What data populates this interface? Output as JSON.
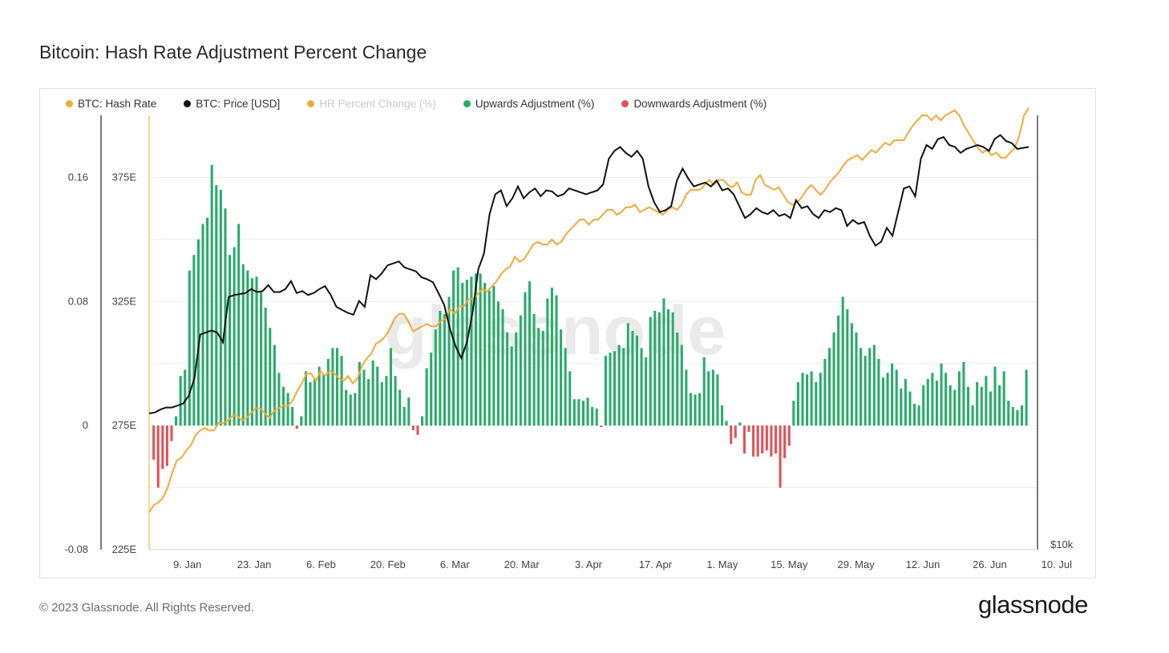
{
  "page": {
    "footer": "© 2023 Glassnode. All Rights Reserved.",
    "brand": "glassnode",
    "watermark": "glassnode"
  },
  "colors": {
    "hash_rate": "#f2a93b",
    "price": "#111111",
    "hr_pct": "#f2a93b",
    "up": "#2aab6b",
    "down": "#e0525a",
    "grid": "#ebebeb"
  },
  "chart_data": {
    "type": "bar",
    "title": "Bitcoin: Hash Rate Adjustment Percent Change",
    "legend": [
      {
        "name": "BTC: Hash Rate",
        "color": "#f2a93b",
        "faded": false
      },
      {
        "name": "BTC: Price [USD]",
        "color": "#111111",
        "faded": false
      },
      {
        "name": "HR Percent Change (%)",
        "color": "#f2a93b",
        "faded": true
      },
      {
        "name": "Upwards Adjustment (%)",
        "color": "#2aab6b",
        "faded": false
      },
      {
        "name": "Downwards Adjustment (%)",
        "color": "#e0525a",
        "faded": false
      }
    ],
    "x_labels": [
      "9. Jan",
      "23. Jan",
      "6. Feb",
      "20. Feb",
      "6. Mar",
      "20. Mar",
      "3. Apr",
      "17. Apr",
      "1. May",
      "15. May",
      "29. May",
      "12. Jun",
      "26. Jun",
      "10. Jul"
    ],
    "x_range": [
      0,
      186
    ],
    "x_label_days": [
      8,
      22,
      36,
      50,
      64,
      78,
      92,
      106,
      120,
      134,
      148,
      162,
      176,
      190
    ],
    "y_left": {
      "ticks": [
        "0.16",
        "0.08",
        "0",
        "-0.08"
      ],
      "tick_values": [
        0.16,
        0.08,
        0,
        -0.08
      ],
      "range": [
        -0.08,
        0.2
      ]
    },
    "y_mid": {
      "ticks": [
        "375E",
        "325E",
        "275E",
        "225E"
      ],
      "tick_values": [
        375,
        325,
        275,
        225
      ],
      "range": [
        225,
        400
      ]
    },
    "y_right": {
      "ticks": [
        "$10k"
      ]
    },
    "adjustment_pct": [
      -0.022,
      -0.04,
      -0.028,
      -0.026,
      -0.01,
      0.006,
      0.032,
      0.036,
      0.1,
      0.11,
      0.12,
      0.13,
      0.134,
      0.168,
      0.155,
      0.152,
      0.14,
      0.11,
      0.115,
      0.13,
      0.104,
      0.1,
      0.095,
      0.096,
      0.086,
      0.076,
      0.063,
      0.052,
      0.034,
      0.025,
      0.021,
      0.012,
      -0.002,
      0.006,
      0.035,
      0.028,
      0.03,
      0.038,
      0.033,
      0.043,
      0.05,
      0.05,
      0.045,
      0.023,
      0.02,
      0.021,
      0.041,
      0.036,
      0.03,
      0.042,
      0.038,
      0.028,
      0.032,
      0.05,
      0.032,
      0.023,
      0.012,
      0.018,
      -0.003,
      -0.006,
      0.006,
      0.037,
      0.047,
      0.062,
      0.074,
      0.072,
      0.083,
      0.1,
      0.102,
      0.092,
      0.094,
      0.096,
      0.098,
      0.098,
      0.092,
      0.087,
      0.09,
      0.08,
      0.075,
      0.06,
      0.051,
      0.06,
      0.071,
      0.086,
      0.093,
      0.072,
      0.063,
      0.061,
      0.082,
      0.089,
      0.084,
      0.062,
      0.05,
      0.035,
      0.017,
      0.017,
      0.016,
      0.018,
      0.012,
      0.011,
      -0.001,
      0.045,
      0.047,
      0.048,
      0.052,
      0.05,
      0.066,
      0.061,
      0.058,
      0.05,
      0.044,
      0.07,
      0.074,
      0.073,
      0.082,
      0.075,
      0.073,
      0.06,
      0.052,
      0.036,
      0.021,
      0.02,
      0.021,
      0.044,
      0.035,
      0.036,
      0.033,
      0.013,
      0.003,
      -0.012,
      -0.008,
      0.002,
      -0.018,
      -0.004,
      -0.02,
      -0.02,
      -0.018,
      -0.016,
      -0.02,
      -0.018,
      -0.04,
      -0.021,
      -0.013,
      0.016,
      0.028,
      0.034,
      0.033,
      0.035,
      0.028,
      0.034,
      0.043,
      0.05,
      0.06,
      0.071,
      0.083,
      0.075,
      0.066,
      0.06,
      0.05,
      0.045,
      0.05,
      0.052,
      0.043,
      0.031,
      0.034,
      0.04,
      0.036,
      0.024,
      0.03,
      0.022,
      0.014,
      0.013,
      0.026,
      0.03,
      0.034,
      0.029,
      0.04,
      0.034,
      0.026,
      0.023,
      0.035,
      0.041,
      0.025,
      0.013,
      0.028,
      0.025,
      0.032,
      0.022,
      0.038,
      0.026,
      0.035,
      0.016,
      0.012,
      0.01,
      0.013,
      0.036
    ],
    "hash_rate_E": [
      240,
      243,
      244,
      246,
      250,
      256,
      261,
      262,
      265,
      267,
      271,
      273,
      274,
      273,
      273,
      276,
      276,
      277,
      279,
      279,
      277,
      278,
      280,
      282,
      282,
      280,
      278,
      281,
      282,
      283,
      283,
      285,
      289,
      292,
      296,
      296,
      293,
      297,
      295,
      297,
      296,
      294,
      293,
      295,
      292,
      294,
      299,
      302,
      304,
      308,
      309,
      311,
      314,
      318,
      320,
      320,
      317,
      313,
      314,
      315,
      316,
      315,
      315,
      317,
      318,
      322,
      320,
      323,
      323,
      326,
      326,
      328,
      330,
      329,
      331,
      333,
      336,
      338,
      339,
      343,
      341,
      342,
      345,
      348,
      349,
      348,
      348,
      350,
      348,
      349,
      352,
      354,
      356,
      358,
      358,
      356,
      358,
      358,
      360,
      362,
      362,
      360,
      361,
      363,
      363,
      364,
      361,
      362,
      363,
      362,
      361,
      360,
      362,
      363,
      362,
      364,
      368,
      370,
      370,
      370,
      372,
      374,
      372,
      374,
      374,
      372,
      371,
      373,
      369,
      368,
      368,
      374,
      376,
      372,
      371,
      370,
      371,
      368,
      365,
      364,
      365,
      367,
      370,
      372,
      370,
      368,
      370,
      373,
      375,
      377,
      380,
      382,
      383,
      384,
      382,
      384,
      386,
      385,
      387,
      389,
      388,
      390,
      390,
      390,
      393,
      396,
      398,
      400,
      400,
      398,
      400,
      398,
      400,
      401,
      402,
      400,
      396,
      393,
      390,
      387,
      385,
      386,
      384,
      385,
      383,
      383,
      385,
      387,
      392,
      400,
      403
    ],
    "price_usd": [
      16900,
      16950,
      17100,
      17200,
      17200,
      17300,
      17400,
      17800,
      18700,
      20900,
      21000,
      21100,
      21000,
      20500,
      22800,
      22900,
      22950,
      23000,
      23200,
      23050,
      23100,
      23400,
      23050,
      23050,
      23200,
      23600,
      23000,
      23100,
      22900,
      23000,
      23200,
      23350,
      22900,
      22300,
      22150,
      22000,
      21900,
      22600,
      22300,
      23900,
      23700,
      24000,
      24400,
      24500,
      24600,
      24300,
      24200,
      24100,
      23800,
      23700,
      23550,
      23000,
      22400,
      21200,
      20300,
      19700,
      20500,
      22000,
      24200,
      25000,
      27000,
      28000,
      28200,
      27400,
      27800,
      28400,
      27800,
      28100,
      28300,
      27900,
      28200,
      28150,
      27900,
      28000,
      28300,
      28200,
      28100,
      28000,
      28100,
      28200,
      28500,
      29800,
      30200,
      30400,
      30100,
      29900,
      30200,
      29800,
      28400,
      27600,
      27100,
      27200,
      27400,
      28700,
      29300,
      28800,
      28400,
      28500,
      28600,
      28400,
      28700,
      28200,
      28300,
      28000,
      27400,
      26800,
      27000,
      27300,
      27100,
      27000,
      27200,
      26900,
      27000,
      26800,
      27700,
      27300,
      27400,
      27000,
      26800,
      27200,
      27100,
      27300,
      27200,
      26400,
      26700,
      26500,
      26600,
      25900,
      25400,
      25600,
      26300,
      25900,
      27100,
      28300,
      28400,
      27900,
      29800,
      30500,
      30300,
      30800,
      30900,
      30500,
      30400,
      30100,
      30300,
      30400,
      30500,
      30400,
      30200,
      30800,
      31000,
      30700,
      30600,
      30300,
      30350,
      30400
    ],
    "price_range_usd": [
      10000,
      32000
    ]
  }
}
